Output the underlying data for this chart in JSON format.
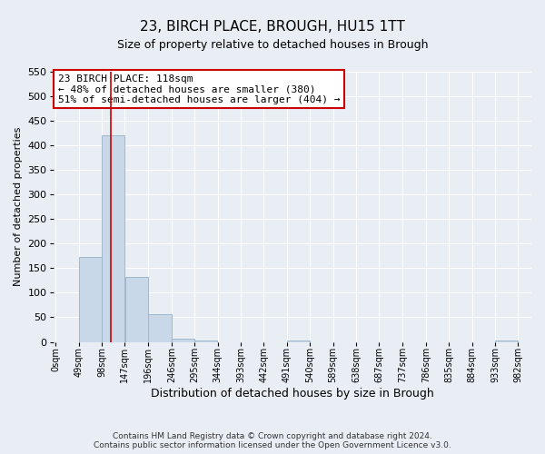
{
  "title": "23, BIRCH PLACE, BROUGH, HU15 1TT",
  "subtitle": "Size of property relative to detached houses in Brough",
  "xlabel": "Distribution of detached houses by size in Brough",
  "ylabel": "Number of detached properties",
  "bin_edges": [
    0,
    49,
    98,
    147,
    196,
    246,
    295,
    344,
    393,
    442,
    491,
    540,
    589,
    638,
    687,
    737,
    786,
    835,
    884,
    933,
    982
  ],
  "bin_labels": [
    "0sqm",
    "49sqm",
    "98sqm",
    "147sqm",
    "196sqm",
    "246sqm",
    "295sqm",
    "344sqm",
    "393sqm",
    "442sqm",
    "491sqm",
    "540sqm",
    "589sqm",
    "638sqm",
    "687sqm",
    "737sqm",
    "786sqm",
    "835sqm",
    "884sqm",
    "933sqm",
    "982sqm"
  ],
  "counts": [
    0,
    173,
    421,
    133,
    57,
    7,
    2,
    0,
    0,
    0,
    2,
    0,
    0,
    0,
    0,
    0,
    0,
    0,
    0,
    2
  ],
  "bar_color": "#c8d8e8",
  "bar_edge_color": "#a0b8cc",
  "vline_x": 118,
  "vline_color": "#cc0000",
  "annotation_text": "23 BIRCH PLACE: 118sqm\n← 48% of detached houses are smaller (380)\n51% of semi-detached houses are larger (404) →",
  "annotation_box_color": "#ffffff",
  "annotation_box_edge_color": "#cc0000",
  "ylim": [
    0,
    550
  ],
  "yticks": [
    0,
    50,
    100,
    150,
    200,
    250,
    300,
    350,
    400,
    450,
    500,
    550
  ],
  "footer_line1": "Contains HM Land Registry data © Crown copyright and database right 2024.",
  "footer_line2": "Contains public sector information licensed under the Open Government Licence v3.0.",
  "background_color": "#e8eef4",
  "plot_background_color": "#e8eef4",
  "grid_color": "#ffffff",
  "title_fontsize": 11,
  "subtitle_fontsize": 9,
  "ylabel_fontsize": 8,
  "xlabel_fontsize": 9,
  "ytick_fontsize": 8,
  "xtick_fontsize": 7,
  "footer_fontsize": 6.5,
  "annot_fontsize": 8
}
